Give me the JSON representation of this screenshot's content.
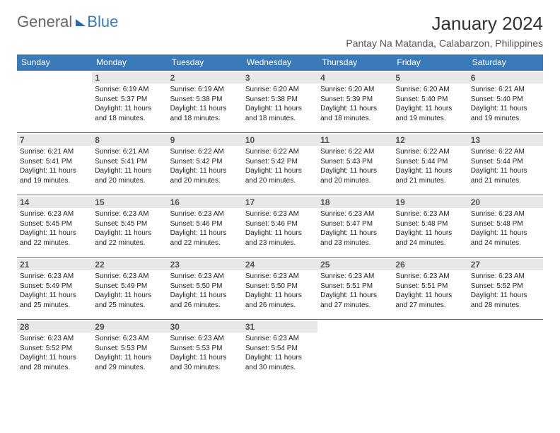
{
  "logo": {
    "part1": "General",
    "part2": "Blue"
  },
  "title": "January 2024",
  "location": "Pantay Na Matanda, Calabarzon, Philippines",
  "weekdays": [
    "Sunday",
    "Monday",
    "Tuesday",
    "Wednesday",
    "Thursday",
    "Friday",
    "Saturday"
  ],
  "header_bg": "#3a7ab8",
  "header_fg": "#ffffff",
  "daynum_bg": "#e8e8e8",
  "border_color": "#3a7ab8",
  "info_fontsize": 10,
  "first_weekday_index": 1,
  "days": [
    {
      "n": 1,
      "sunrise": "6:19 AM",
      "sunset": "5:37 PM",
      "daylight": "11 hours and 18 minutes."
    },
    {
      "n": 2,
      "sunrise": "6:19 AM",
      "sunset": "5:38 PM",
      "daylight": "11 hours and 18 minutes."
    },
    {
      "n": 3,
      "sunrise": "6:20 AM",
      "sunset": "5:38 PM",
      "daylight": "11 hours and 18 minutes."
    },
    {
      "n": 4,
      "sunrise": "6:20 AM",
      "sunset": "5:39 PM",
      "daylight": "11 hours and 18 minutes."
    },
    {
      "n": 5,
      "sunrise": "6:20 AM",
      "sunset": "5:40 PM",
      "daylight": "11 hours and 19 minutes."
    },
    {
      "n": 6,
      "sunrise": "6:21 AM",
      "sunset": "5:40 PM",
      "daylight": "11 hours and 19 minutes."
    },
    {
      "n": 7,
      "sunrise": "6:21 AM",
      "sunset": "5:41 PM",
      "daylight": "11 hours and 19 minutes."
    },
    {
      "n": 8,
      "sunrise": "6:21 AM",
      "sunset": "5:41 PM",
      "daylight": "11 hours and 20 minutes."
    },
    {
      "n": 9,
      "sunrise": "6:22 AM",
      "sunset": "5:42 PM",
      "daylight": "11 hours and 20 minutes."
    },
    {
      "n": 10,
      "sunrise": "6:22 AM",
      "sunset": "5:42 PM",
      "daylight": "11 hours and 20 minutes."
    },
    {
      "n": 11,
      "sunrise": "6:22 AM",
      "sunset": "5:43 PM",
      "daylight": "11 hours and 20 minutes."
    },
    {
      "n": 12,
      "sunrise": "6:22 AM",
      "sunset": "5:44 PM",
      "daylight": "11 hours and 21 minutes."
    },
    {
      "n": 13,
      "sunrise": "6:22 AM",
      "sunset": "5:44 PM",
      "daylight": "11 hours and 21 minutes."
    },
    {
      "n": 14,
      "sunrise": "6:23 AM",
      "sunset": "5:45 PM",
      "daylight": "11 hours and 22 minutes."
    },
    {
      "n": 15,
      "sunrise": "6:23 AM",
      "sunset": "5:45 PM",
      "daylight": "11 hours and 22 minutes."
    },
    {
      "n": 16,
      "sunrise": "6:23 AM",
      "sunset": "5:46 PM",
      "daylight": "11 hours and 22 minutes."
    },
    {
      "n": 17,
      "sunrise": "6:23 AM",
      "sunset": "5:46 PM",
      "daylight": "11 hours and 23 minutes."
    },
    {
      "n": 18,
      "sunrise": "6:23 AM",
      "sunset": "5:47 PM",
      "daylight": "11 hours and 23 minutes."
    },
    {
      "n": 19,
      "sunrise": "6:23 AM",
      "sunset": "5:48 PM",
      "daylight": "11 hours and 24 minutes."
    },
    {
      "n": 20,
      "sunrise": "6:23 AM",
      "sunset": "5:48 PM",
      "daylight": "11 hours and 24 minutes."
    },
    {
      "n": 21,
      "sunrise": "6:23 AM",
      "sunset": "5:49 PM",
      "daylight": "11 hours and 25 minutes."
    },
    {
      "n": 22,
      "sunrise": "6:23 AM",
      "sunset": "5:49 PM",
      "daylight": "11 hours and 25 minutes."
    },
    {
      "n": 23,
      "sunrise": "6:23 AM",
      "sunset": "5:50 PM",
      "daylight": "11 hours and 26 minutes."
    },
    {
      "n": 24,
      "sunrise": "6:23 AM",
      "sunset": "5:50 PM",
      "daylight": "11 hours and 26 minutes."
    },
    {
      "n": 25,
      "sunrise": "6:23 AM",
      "sunset": "5:51 PM",
      "daylight": "11 hours and 27 minutes."
    },
    {
      "n": 26,
      "sunrise": "6:23 AM",
      "sunset": "5:51 PM",
      "daylight": "11 hours and 27 minutes."
    },
    {
      "n": 27,
      "sunrise": "6:23 AM",
      "sunset": "5:52 PM",
      "daylight": "11 hours and 28 minutes."
    },
    {
      "n": 28,
      "sunrise": "6:23 AM",
      "sunset": "5:52 PM",
      "daylight": "11 hours and 28 minutes."
    },
    {
      "n": 29,
      "sunrise": "6:23 AM",
      "sunset": "5:53 PM",
      "daylight": "11 hours and 29 minutes."
    },
    {
      "n": 30,
      "sunrise": "6:23 AM",
      "sunset": "5:53 PM",
      "daylight": "11 hours and 30 minutes."
    },
    {
      "n": 31,
      "sunrise": "6:23 AM",
      "sunset": "5:54 PM",
      "daylight": "11 hours and 30 minutes."
    }
  ],
  "labels": {
    "sunrise": "Sunrise:",
    "sunset": "Sunset:",
    "daylight": "Daylight:"
  }
}
